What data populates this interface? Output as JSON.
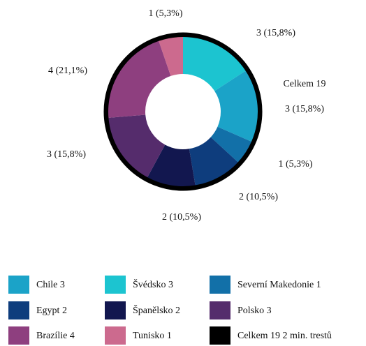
{
  "chart_data": {
    "type": "donut",
    "annotation": "Celkem 19",
    "ring_color": "#000000",
    "slices": [
      {
        "value": 3,
        "value_label": "3 (15,8%)",
        "color": "#1cc4d0"
      },
      {
        "value": 3,
        "value_label": "3 (15,8%)",
        "color": "#1ba3c8"
      },
      {
        "value": 1,
        "value_label": "1 (5,3%)",
        "color": "#1270a8"
      },
      {
        "value": 2,
        "value_label": "2 (10,5%)",
        "color": "#0e3d7d"
      },
      {
        "value": 2,
        "value_label": "2 (10,5%)",
        "color": "#12174f"
      },
      {
        "value": 3,
        "value_label": "3 (15,8%)",
        "color": "#552c6c"
      },
      {
        "value": 4,
        "value_label": "4 (21,1%)",
        "color": "#8e3f7f"
      },
      {
        "value": 1,
        "value_label": "1 (5,3%)",
        "color": "#cc6a8e"
      }
    ],
    "legend": [
      {
        "name": "Chile 3",
        "color": "#1ba3c8"
      },
      {
        "name": "Švédsko 3",
        "color": "#1cc4d0"
      },
      {
        "name": "Severní Makedonie 1",
        "color": "#1270a8"
      },
      {
        "name": "Egypt 2",
        "color": "#0e3d7d"
      },
      {
        "name": "Španělsko 2",
        "color": "#12174f"
      },
      {
        "name": "Polsko 3",
        "color": "#552c6c"
      },
      {
        "name": "Brazílie 4",
        "color": "#8e3f7f"
      },
      {
        "name": "Tunisko 1",
        "color": "#cc6a8e"
      },
      {
        "name": "Celkem 19 2 min. trestů",
        "color": "#000000"
      }
    ]
  }
}
